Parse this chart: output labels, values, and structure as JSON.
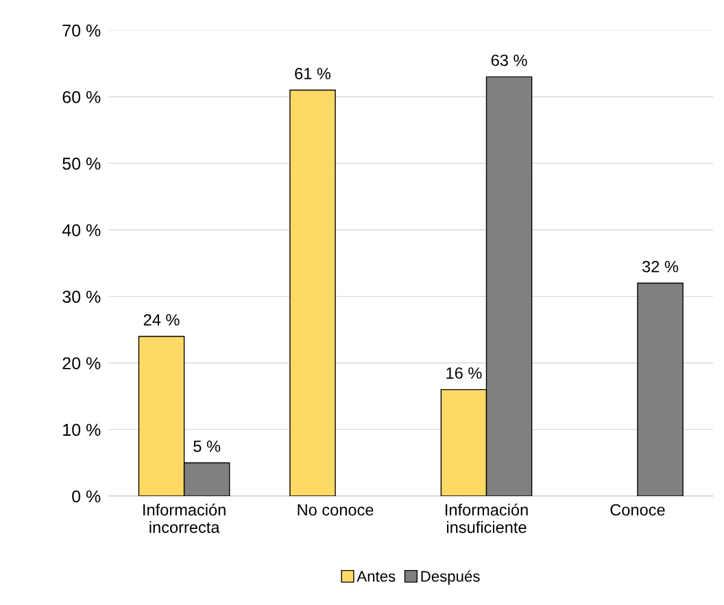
{
  "chart_data": {
    "type": "bar",
    "categories": [
      "Información\nincorrecta",
      "No conoce",
      "Información\ninsuficiente",
      "Conoce"
    ],
    "series": [
      {
        "name": "Antes",
        "color": "#ffd966",
        "values": [
          24,
          61,
          16,
          null
        ],
        "value_labels": [
          "24 %",
          "61 %",
          "16 %",
          null
        ]
      },
      {
        "name": "Después",
        "color": "#808080",
        "values": [
          5,
          null,
          63,
          32
        ],
        "value_labels": [
          "5 %",
          null,
          "63 %",
          "32 %"
        ]
      }
    ],
    "ylim": [
      0,
      70
    ],
    "yticks": [
      {
        "value": 0,
        "label": "0 %"
      },
      {
        "value": 10,
        "label": "10 %"
      },
      {
        "value": 20,
        "label": "20 %"
      },
      {
        "value": 30,
        "label": "30 %"
      },
      {
        "value": 40,
        "label": "40 %"
      },
      {
        "value": 50,
        "label": "50 %"
      },
      {
        "value": 60,
        "label": "60 %"
      },
      {
        "value": 70,
        "label": "70 %"
      }
    ],
    "grid": "y",
    "legend": "bottom"
  }
}
